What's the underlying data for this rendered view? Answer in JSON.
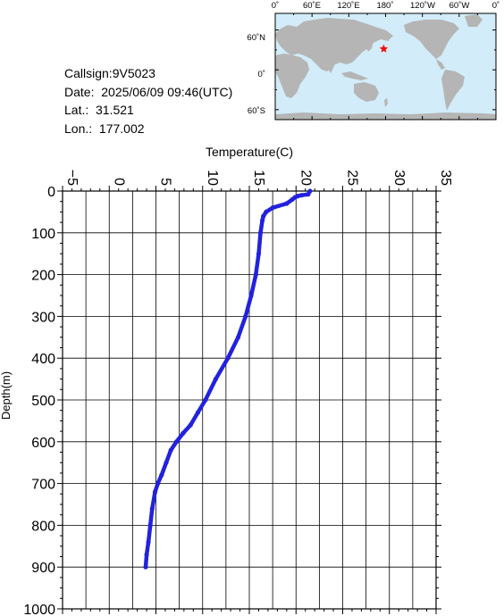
{
  "info": {
    "callsign": "Callsign:9V5023",
    "date": "Date:  2025/06/09 09:46(UTC)",
    "lat": "Lat.:  31.521",
    "lon": "Lon.:  177.002"
  },
  "map": {
    "lon_labels": [
      "0˚",
      "60˚E",
      "120˚E",
      "180˚",
      "120˚W",
      "60˚W",
      "0˚"
    ],
    "lat_labels": [
      "60˚N",
      "0˚",
      "60˚S"
    ],
    "ocean_color": "#d2ecf9",
    "land_color": "#b5b5b5",
    "marker_color": "#ff0000",
    "marker_icon": "star-icon",
    "station": {
      "lat": 31.521,
      "lon": 177.002
    }
  },
  "chart_data": {
    "type": "line",
    "xlabel": "Temperature(C)",
    "ylabel": "Depth(m)",
    "xlim": [
      -5,
      35
    ],
    "ylim": [
      0,
      1000
    ],
    "y_inverted": true,
    "x_axis_position": "top",
    "x_ticks": [
      -5,
      0,
      5,
      10,
      15,
      20,
      25,
      30,
      35
    ],
    "y_ticks": [
      0,
      100,
      200,
      300,
      400,
      500,
      600,
      700,
      800,
      900,
      1000
    ],
    "grid": true,
    "series_color": "#2222dd",
    "series": [
      {
        "x": [
          21.5,
          21.3,
          20.6,
          20.2,
          19.9,
          19.6,
          19.0,
          17.5,
          16.8,
          16.5,
          16.4,
          16.2,
          16.0,
          15.7,
          15.2,
          14.6,
          13.8,
          12.7,
          11.4,
          10.3,
          9.5,
          8.7,
          7.9,
          7.2,
          6.6,
          6.1,
          5.6,
          5.2,
          4.9,
          4.6,
          4.4,
          4.2,
          4.0,
          3.9
        ],
        "y": [
          0,
          8,
          10,
          12,
          15,
          20,
          30,
          40,
          50,
          60,
          70,
          100,
          150,
          200,
          250,
          300,
          350,
          400,
          450,
          500,
          530,
          560,
          580,
          600,
          620,
          650,
          680,
          700,
          720,
          760,
          800,
          840,
          870,
          900
        ]
      }
    ]
  }
}
